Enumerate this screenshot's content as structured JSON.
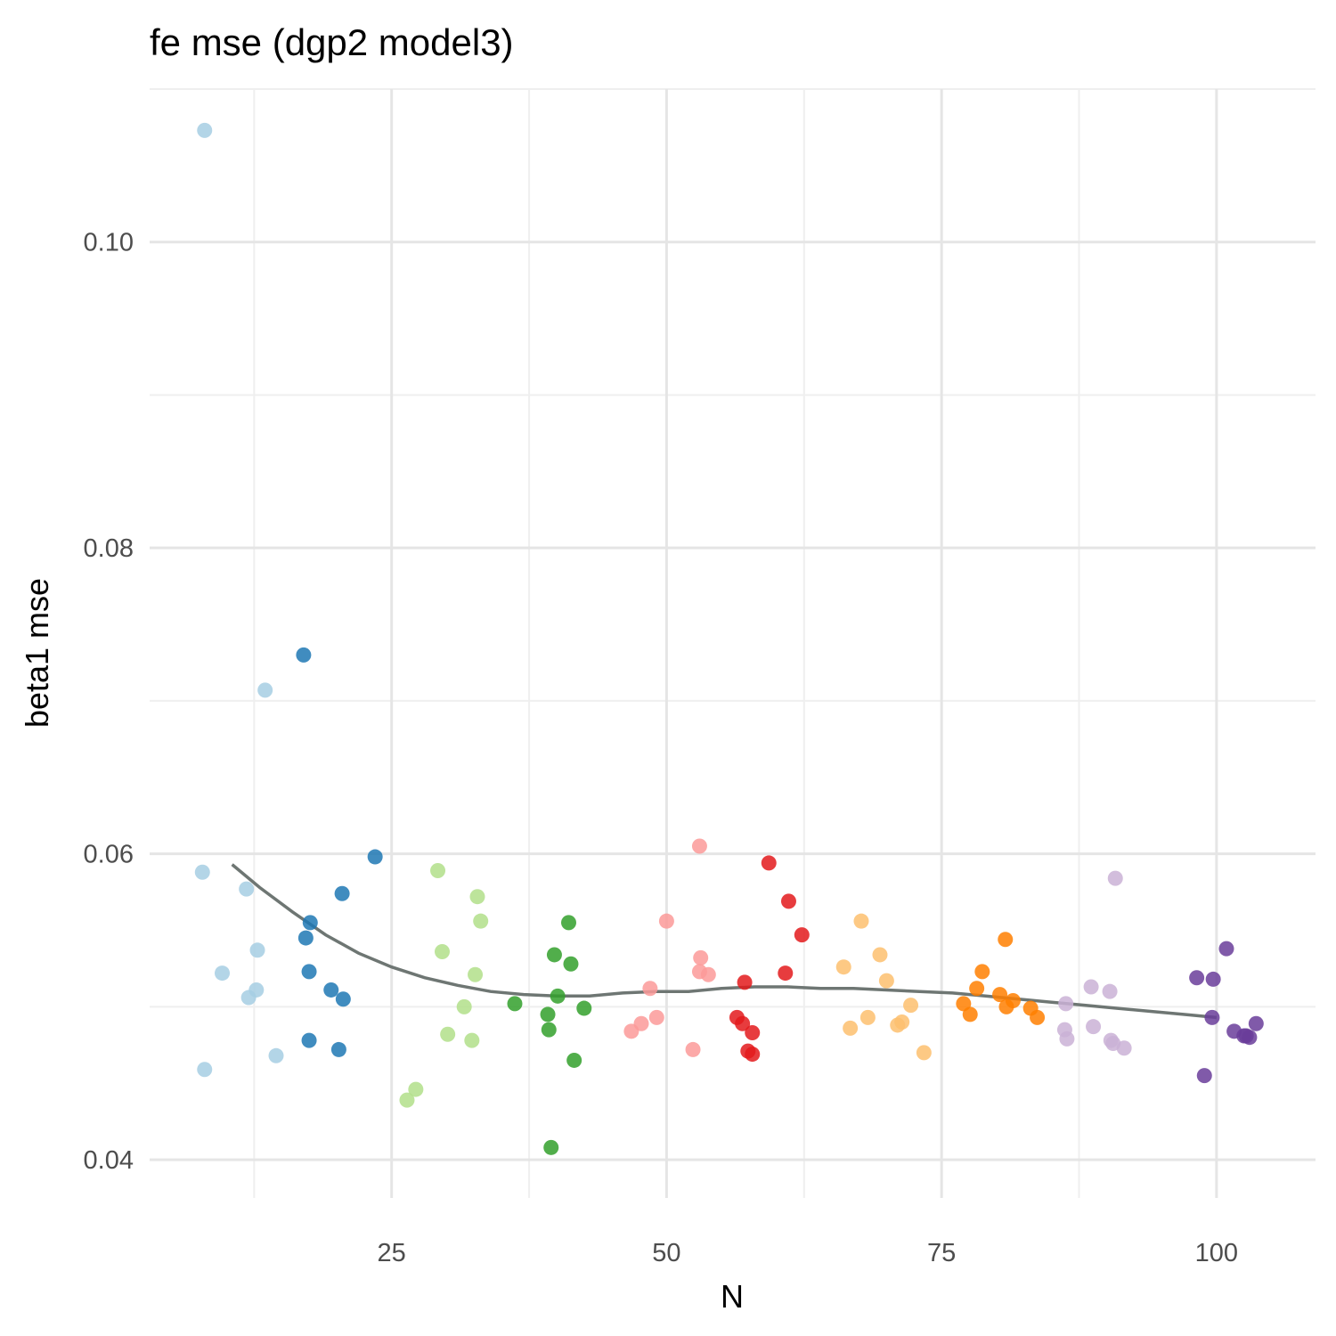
{
  "chart_data": {
    "type": "scatter",
    "title": "fe mse (dgp2 model3)",
    "xlabel": "N",
    "ylabel": "beta1 mse",
    "xlim": [
      3,
      109
    ],
    "ylim": [
      0.0375,
      0.11
    ],
    "x_ticks": [
      25,
      50,
      75,
      100
    ],
    "y_ticks": [
      0.04,
      0.06,
      0.08,
      0.1
    ],
    "x_tick_labels": [
      "25",
      "50",
      "75",
      "100"
    ],
    "y_tick_labels": [
      "0.04",
      "0.06",
      "0.08",
      "0.10"
    ],
    "grid": true,
    "legend": "none",
    "series": [
      {
        "color": "#a6cee3",
        "points": [
          [
            8,
            0.1073
          ],
          [
            7.8,
            0.0588
          ],
          [
            11.8,
            0.0577
          ],
          [
            12.8,
            0.0537
          ],
          [
            9.6,
            0.0522
          ],
          [
            12.7,
            0.0511
          ],
          [
            12,
            0.0506
          ],
          [
            8,
            0.0459
          ],
          [
            14.5,
            0.0468
          ],
          [
            13.5,
            0.0707
          ]
        ]
      },
      {
        "color": "#1f78b4",
        "points": [
          [
            17,
            0.073
          ],
          [
            23.5,
            0.0598
          ],
          [
            20.5,
            0.0574
          ],
          [
            17.6,
            0.0555
          ],
          [
            17.2,
            0.0545
          ],
          [
            17.5,
            0.0523
          ],
          [
            19.5,
            0.0511
          ],
          [
            20.6,
            0.0505
          ],
          [
            17.5,
            0.0478
          ],
          [
            20.2,
            0.0472
          ]
        ]
      },
      {
        "color": "#b2df8a",
        "points": [
          [
            29.2,
            0.0589
          ],
          [
            32.8,
            0.0572
          ],
          [
            33.1,
            0.0556
          ],
          [
            29.6,
            0.0536
          ],
          [
            32.6,
            0.0521
          ],
          [
            31.6,
            0.05
          ],
          [
            30.1,
            0.0482
          ],
          [
            32.3,
            0.0478
          ],
          [
            27.2,
            0.0446
          ],
          [
            26.4,
            0.0439
          ]
        ]
      },
      {
        "color": "#33a02c",
        "points": [
          [
            41.1,
            0.0555
          ],
          [
            39.8,
            0.0534
          ],
          [
            41.3,
            0.0528
          ],
          [
            40.1,
            0.0507
          ],
          [
            36.2,
            0.0502
          ],
          [
            42.5,
            0.0499
          ],
          [
            39.2,
            0.0495
          ],
          [
            39.3,
            0.0485
          ],
          [
            41.6,
            0.0465
          ],
          [
            39.5,
            0.0408
          ]
        ]
      },
      {
        "color": "#fb9a99",
        "points": [
          [
            53,
            0.0605
          ],
          [
            50,
            0.0556
          ],
          [
            53.1,
            0.0532
          ],
          [
            53,
            0.0523
          ],
          [
            53.8,
            0.0521
          ],
          [
            48.5,
            0.0512
          ],
          [
            49.1,
            0.0493
          ],
          [
            47.7,
            0.0489
          ],
          [
            46.8,
            0.0484
          ],
          [
            52.4,
            0.0472
          ]
        ]
      },
      {
        "color": "#e31a1c",
        "points": [
          [
            59.3,
            0.0594
          ],
          [
            61.1,
            0.0569
          ],
          [
            62.3,
            0.0547
          ],
          [
            57.1,
            0.0516
          ],
          [
            60.8,
            0.0522
          ],
          [
            56.4,
            0.0493
          ],
          [
            56.9,
            0.0489
          ],
          [
            57.8,
            0.0483
          ],
          [
            57.4,
            0.0471
          ],
          [
            57.8,
            0.0469
          ]
        ]
      },
      {
        "color": "#fdbf6f",
        "points": [
          [
            67.7,
            0.0556
          ],
          [
            69.4,
            0.0534
          ],
          [
            66.1,
            0.0526
          ],
          [
            70,
            0.0517
          ],
          [
            72.2,
            0.0501
          ],
          [
            68.3,
            0.0493
          ],
          [
            71.4,
            0.049
          ],
          [
            71,
            0.0488
          ],
          [
            66.7,
            0.0486
          ],
          [
            73.4,
            0.047
          ]
        ]
      },
      {
        "color": "#ff7f00",
        "points": [
          [
            80.8,
            0.0544
          ],
          [
            78.7,
            0.0523
          ],
          [
            78.2,
            0.0512
          ],
          [
            80.3,
            0.0508
          ],
          [
            81.5,
            0.0504
          ],
          [
            77,
            0.0502
          ],
          [
            80.9,
            0.05
          ],
          [
            83.1,
            0.0499
          ],
          [
            77.6,
            0.0495
          ],
          [
            83.7,
            0.0493
          ]
        ]
      },
      {
        "color": "#cab2d6",
        "points": [
          [
            90.8,
            0.0584
          ],
          [
            88.6,
            0.0513
          ],
          [
            90.3,
            0.051
          ],
          [
            86.3,
            0.0502
          ],
          [
            88.8,
            0.0487
          ],
          [
            86.2,
            0.0485
          ],
          [
            86.4,
            0.0479
          ],
          [
            90.4,
            0.0478
          ],
          [
            90.6,
            0.0476
          ],
          [
            91.6,
            0.0473
          ]
        ]
      },
      {
        "color": "#6a3d9a",
        "points": [
          [
            100.9,
            0.0538
          ],
          [
            98.2,
            0.0519
          ],
          [
            99.7,
            0.0518
          ],
          [
            99.6,
            0.0493
          ],
          [
            103.6,
            0.0489
          ],
          [
            101.6,
            0.0484
          ],
          [
            102.5,
            0.0481
          ],
          [
            102.7,
            0.0481
          ],
          [
            103,
            0.048
          ],
          [
            98.9,
            0.0455
          ]
        ]
      }
    ],
    "smooth_line": {
      "color": "#6e7673",
      "x": [
        10.5,
        13,
        16,
        19,
        22,
        25,
        28,
        31,
        34,
        37,
        40,
        43,
        46,
        49,
        52,
        55,
        58,
        61,
        64,
        67,
        70,
        73,
        76,
        79,
        82,
        85,
        88,
        91,
        94,
        97,
        100
      ],
      "y": [
        0.0593,
        0.0578,
        0.0562,
        0.0547,
        0.0535,
        0.0526,
        0.0519,
        0.0514,
        0.051,
        0.0508,
        0.0507,
        0.0507,
        0.0509,
        0.051,
        0.051,
        0.0512,
        0.0513,
        0.0513,
        0.0512,
        0.0512,
        0.0511,
        0.051,
        0.0509,
        0.0507,
        0.0505,
        0.0503,
        0.0501,
        0.0499,
        0.0497,
        0.0495,
        0.0493
      ]
    }
  }
}
